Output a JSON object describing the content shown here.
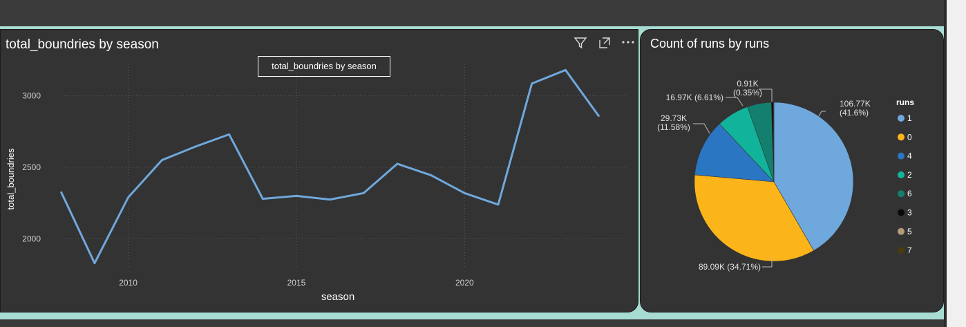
{
  "line_visual": {
    "title": "total_boundries by season",
    "tooltip": "total_boundries by season",
    "icons": [
      "filter-icon",
      "focus-mode-icon",
      "more-options-icon"
    ]
  },
  "pie_visual": {
    "title": "Count of runs by runs",
    "legend_title": "runs"
  },
  "colors": {
    "line": "#6fa8dc",
    "panel_bg": "#333333",
    "teal_border": "#a7dcd3"
  },
  "chart_data": [
    {
      "type": "line",
      "title": "total_boundries by season",
      "xlabel": "season",
      "ylabel": "total_boundries",
      "x_ticks": [
        "2010",
        "2015",
        "2020"
      ],
      "y_ticks": [
        "2000",
        "2500",
        "3000"
      ],
      "xlim": [
        2007.4,
        2024.8
      ],
      "ylim": [
        1790,
        3220
      ],
      "grid": true,
      "x": [
        2008,
        2009,
        2010,
        2011,
        2012,
        2013,
        2014,
        2015,
        2016,
        2017,
        2018,
        2019,
        2020,
        2021,
        2022,
        2023,
        2024
      ],
      "values": [
        2330,
        1830,
        2290,
        2550,
        2645,
        2730,
        2280,
        2300,
        2275,
        2320,
        2525,
        2445,
        2320,
        2240,
        3085,
        3180,
        2855
      ]
    },
    {
      "type": "pie",
      "title": "Count of runs by runs",
      "legend_title": "runs",
      "legend_position": "right",
      "slices": [
        {
          "label": "1",
          "value": 106770,
          "percent": 41.6,
          "color": "#6fa8dc",
          "label_line1": "106.77K",
          "label_line2": "(41.6%)"
        },
        {
          "label": "0",
          "value": 89090,
          "percent": 34.71,
          "color": "#fbb41a",
          "label_line1": "89.09K (34.71%)",
          "label_line2": ""
        },
        {
          "label": "4",
          "value": 29730,
          "percent": 11.58,
          "color": "#2b76c2",
          "label_line1": "29.73K",
          "label_line2": "(11.58%)"
        },
        {
          "label": "2",
          "value": 16970,
          "percent": 6.61,
          "color": "#11b39b",
          "label_line1": "16.97K (6.61%)",
          "label_line2": ""
        },
        {
          "label": "6",
          "value": 12500,
          "percent": 4.87,
          "color": "#13806f",
          "label_line1": "",
          "label_line2": ""
        },
        {
          "label": "3",
          "value": 910,
          "percent": 0.35,
          "color": "#0a0a0a",
          "label_line1": "0.91K",
          "label_line2": "(0.35%)"
        },
        {
          "label": "5",
          "value": 260,
          "percent": 0.1,
          "color": "#b39a7a",
          "label_line1": "",
          "label_line2": ""
        },
        {
          "label": "7",
          "value": 130,
          "percent": 0.05,
          "color": "#4a3a10",
          "label_line1": "",
          "label_line2": ""
        }
      ]
    }
  ]
}
